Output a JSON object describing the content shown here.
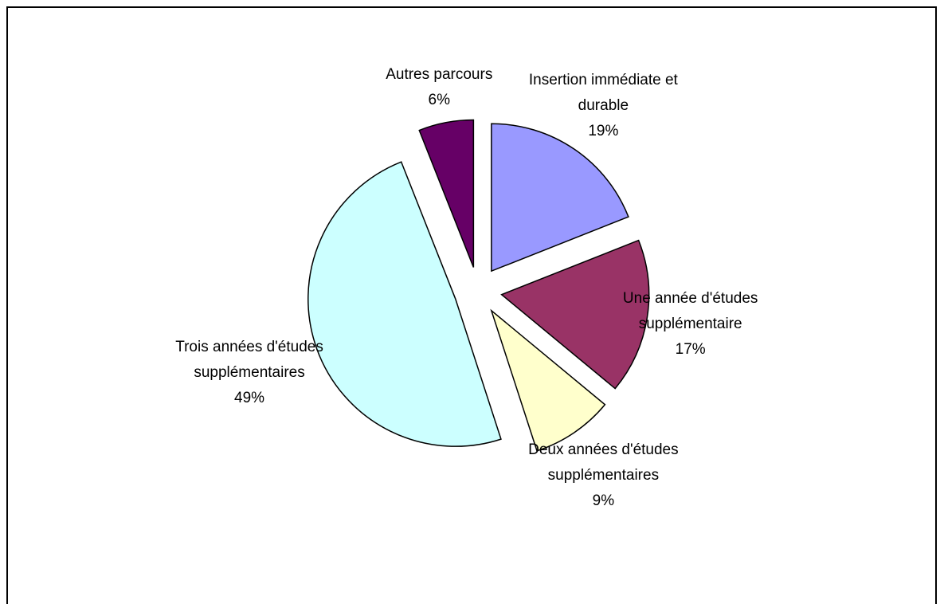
{
  "chart_data": {
    "type": "pie",
    "categories": [
      "Insertion immédiate et durable",
      "Une année d'études supplémentaire",
      "Deux années d'études supplémentaires",
      "Trois années d'études supplémentaires",
      "Autres parcours"
    ],
    "values": [
      19,
      17,
      9,
      49,
      6
    ],
    "value_labels": [
      "19%",
      "17%",
      "9%",
      "49%",
      "6%"
    ],
    "colors": [
      "#9999ff",
      "#993366",
      "#ffffcc",
      "#ccffff",
      "#660066"
    ]
  }
}
